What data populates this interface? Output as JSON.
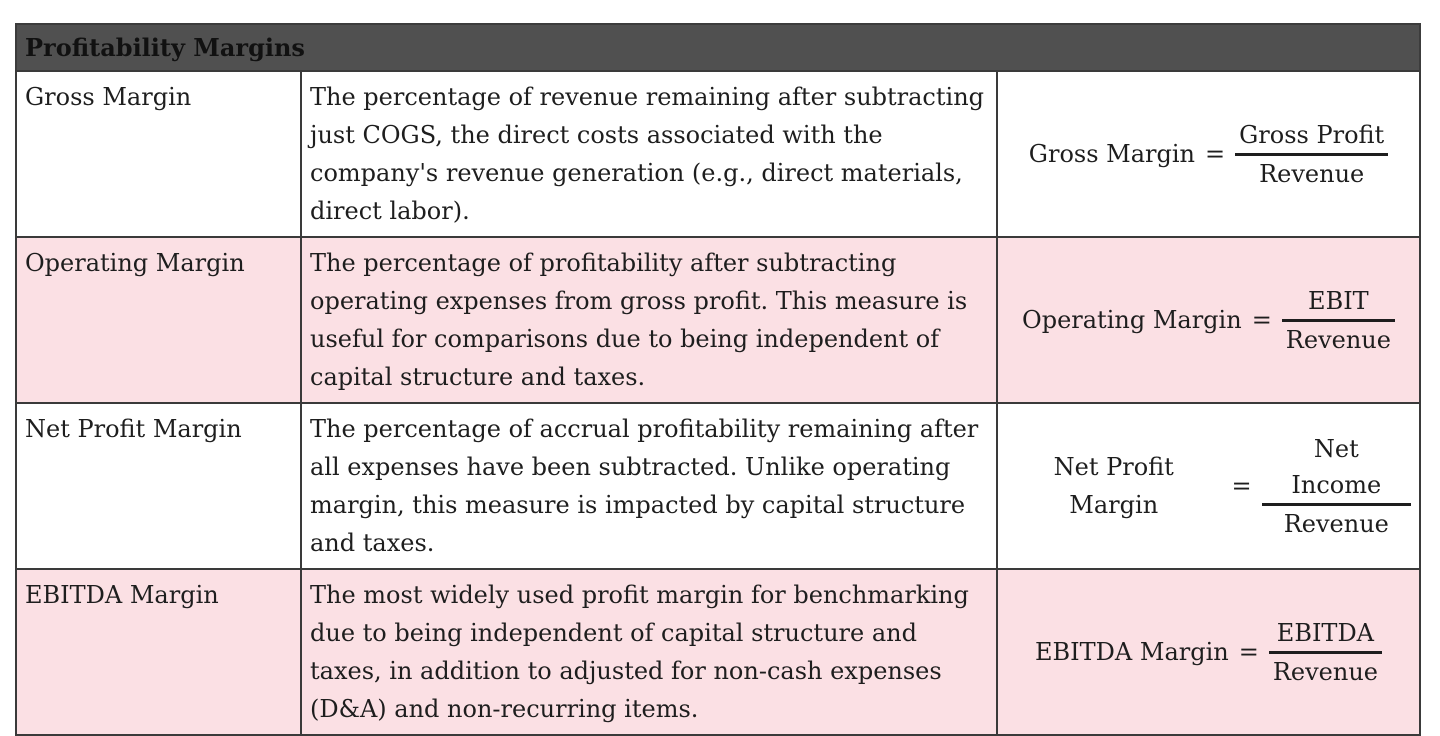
{
  "title": "Profitability Margins",
  "rows": [
    {
      "name": "Gross Margin",
      "description": "The percentage of revenue remaining after subtracting just COGS, the direct costs associated with the company's revenue generation (e.g., direct materials, direct labor).",
      "formula": {
        "lhs": "Gross Margin",
        "equals": "=",
        "numerator": "Gross Profit",
        "denominator": "Revenue"
      },
      "shade": "white"
    },
    {
      "name": "Operating Margin",
      "description": "The percentage of profitability after subtracting operating expenses from gross profit. This measure is useful for comparisons due to being independent of capital structure and taxes.",
      "formula": {
        "lhs": "Operating Margin",
        "equals": "=",
        "numerator": "EBIT",
        "denominator": "Revenue"
      },
      "shade": "pink"
    },
    {
      "name": "Net Profit Margin",
      "description": "The percentage of accrual profitability remaining after all expenses have been subtracted. Unlike operating margin, this measure is impacted by capital structure and taxes.",
      "formula": {
        "lhs": "Net Profit Margin",
        "equals": "=",
        "numerator": "Net Income",
        "denominator": "Revenue"
      },
      "shade": "white"
    },
    {
      "name": "EBITDA Margin",
      "description": "The most widely used profit margin for benchmarking due to being independent of capital structure and taxes, in addition to adjusted for non-cash expenses (D&A) and non-recurring items.",
      "formula": {
        "lhs": "EBITDA Margin",
        "equals": "=",
        "numerator": "EBITDA",
        "denominator": "Revenue"
      },
      "shade": "pink"
    }
  ],
  "colors": {
    "header_bg": "#505050",
    "row_pink": "#fbe0e4",
    "row_white": "#ffffff",
    "border": "#3a3a3a"
  }
}
